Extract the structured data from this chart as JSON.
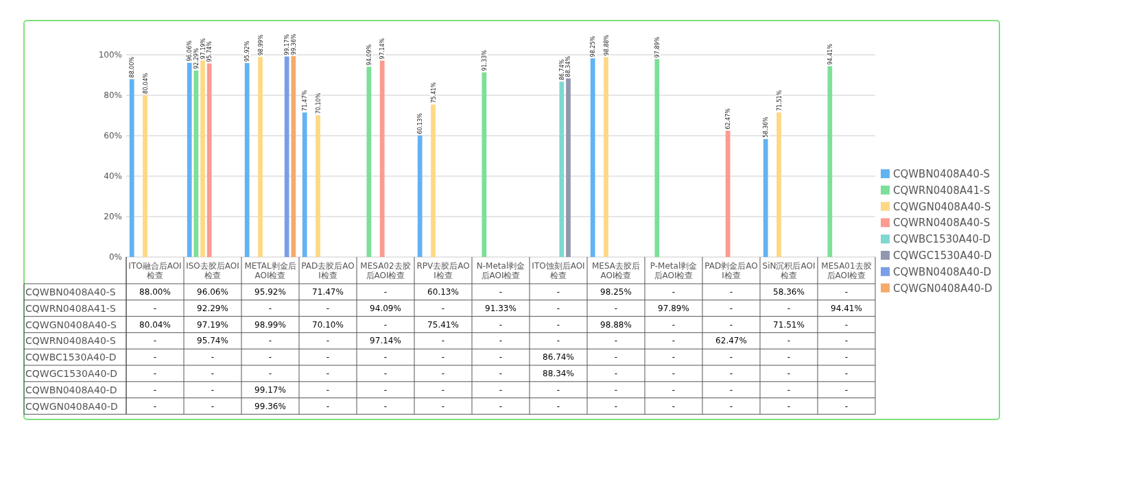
{
  "chart_data": {
    "type": "bar",
    "categories": [
      "ITO融合后AOI检查",
      "ISO去胶后AOI检查",
      "METAL剥金后AOI检查",
      "PAD去胶后AOI检查",
      "MESA02去胶后AOI检查",
      "RPV去胶后AOI检查",
      "N-Metal剥金后AOI检查",
      "ITO蚀刻后AOI检查",
      "MESA去胶后AOI检查",
      "P-Metal剥金后AOI检查",
      "PAD剥金后AOI检查",
      "SiN沉积后AOI检查",
      "MESA01去胶后AOI检查"
    ],
    "series": [
      {
        "name": "CQWBN0408A40-S",
        "color": "#62b3f2",
        "values": [
          88.0,
          96.06,
          95.92,
          71.47,
          null,
          60.13,
          null,
          null,
          98.25,
          null,
          null,
          58.36,
          null
        ],
        "value_labels": [
          "88.00%",
          "96.06%",
          "95.92%",
          "71.47%",
          "-",
          "60.13%",
          "-",
          "-",
          "98.25%",
          "-",
          "-",
          "58.36%",
          "-"
        ]
      },
      {
        "name": "CQWRN0408A41-S",
        "color": "#7ddf98",
        "values": [
          null,
          92.29,
          null,
          null,
          94.09,
          null,
          91.33,
          null,
          null,
          97.89,
          null,
          null,
          94.41
        ],
        "value_labels": [
          "-",
          "92.29%",
          "-",
          "-",
          "94.09%",
          "-",
          "91.33%",
          "-",
          "-",
          "97.89%",
          "-",
          "-",
          "94.41%"
        ]
      },
      {
        "name": "CQWGN0408A40-S",
        "color": "#fdd886",
        "values": [
          80.04,
          97.19,
          98.99,
          70.1,
          null,
          75.41,
          null,
          null,
          98.88,
          null,
          null,
          71.51,
          null
        ],
        "value_labels": [
          "80.04%",
          "97.19%",
          "98.99%",
          "70.10%",
          "-",
          "75.41%",
          "-",
          "-",
          "98.88%",
          "-",
          "-",
          "71.51%",
          "-"
        ]
      },
      {
        "name": "CQWRN0408A40-S",
        "color": "#fb9c90",
        "values": [
          null,
          95.74,
          null,
          null,
          97.14,
          null,
          null,
          null,
          null,
          null,
          62.47,
          null,
          null
        ],
        "value_labels": [
          "-",
          "95.74%",
          "-",
          "-",
          "97.14%",
          "-",
          "-",
          "-",
          "-",
          "-",
          "62.47%",
          "-",
          "-"
        ]
      },
      {
        "name": "CQWBC1530A40-D",
        "color": "#7ed8d0",
        "values": [
          null,
          null,
          null,
          null,
          null,
          null,
          null,
          86.74,
          null,
          null,
          null,
          null,
          null
        ],
        "value_labels": [
          "-",
          "-",
          "-",
          "-",
          "-",
          "-",
          "-",
          "86.74%",
          "-",
          "-",
          "-",
          "-",
          "-"
        ]
      },
      {
        "name": "CQWGC1530A40-D",
        "color": "#9197af",
        "values": [
          null,
          null,
          null,
          null,
          null,
          null,
          null,
          88.34,
          null,
          null,
          null,
          null,
          null
        ],
        "value_labels": [
          "-",
          "-",
          "-",
          "-",
          "-",
          "-",
          "-",
          "88.34%",
          "-",
          "-",
          "-",
          "-",
          "-"
        ]
      },
      {
        "name": "CQWBN0408A40-D",
        "color": "#7b9de8",
        "values": [
          null,
          null,
          99.17,
          null,
          null,
          null,
          null,
          null,
          null,
          null,
          null,
          null,
          null
        ],
        "value_labels": [
          "-",
          "-",
          "99.17%",
          "-",
          "-",
          "-",
          "-",
          "-",
          "-",
          "-",
          "-",
          "-",
          "-"
        ]
      },
      {
        "name": "CQWGN0408A40-D",
        "color": "#f5aa6a",
        "values": [
          null,
          null,
          99.36,
          null,
          null,
          null,
          null,
          null,
          null,
          null,
          null,
          null,
          null
        ],
        "value_labels": [
          "-",
          "-",
          "99.36%",
          "-",
          "-",
          "-",
          "-",
          "-",
          "-",
          "-",
          "-",
          "-",
          "-"
        ]
      }
    ],
    "ylim": [
      0,
      100
    ],
    "yticks": [
      {
        "value": 0,
        "label": "0%"
      },
      {
        "value": 20,
        "label": "20%"
      },
      {
        "value": 40,
        "label": "40%"
      },
      {
        "value": 60,
        "label": "60%"
      },
      {
        "value": 80,
        "label": "80%"
      },
      {
        "value": 100,
        "label": "100%"
      }
    ],
    "grid": "y",
    "legend": "right"
  }
}
